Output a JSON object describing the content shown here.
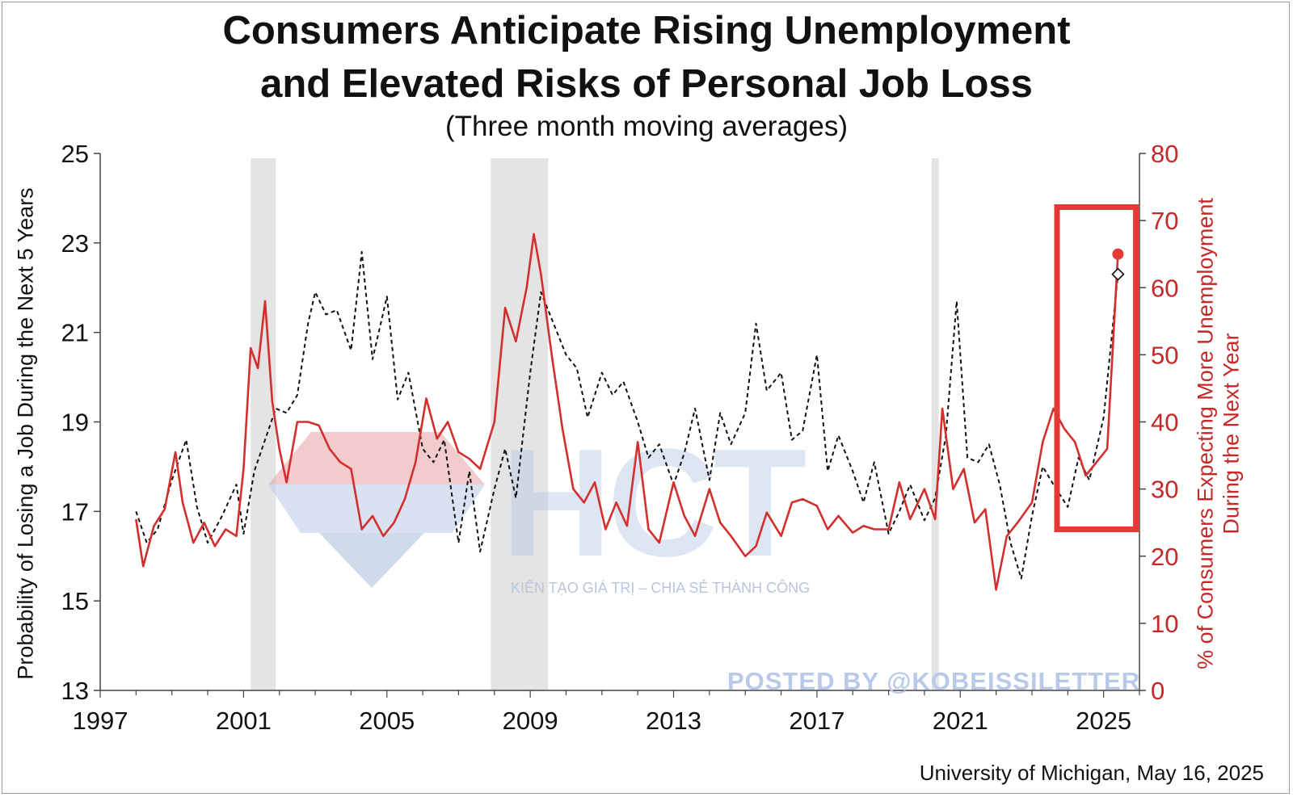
{
  "chart_data": {
    "type": "line",
    "title": "Consumers Anticipate Rising Unemployment",
    "title_line2": "and Elevated Risks of Personal Job Loss",
    "subtitle": "(Three month moving averages)",
    "source": "University of Michigan, May 16, 2025",
    "ylabel_left": "Probability of Losing a Job During the Next 5 Years",
    "ylabel_right_line1": "% of Consumers Expecting More Unemployment",
    "ylabel_right_line2": "During the Next Year",
    "xlim": [
      1997,
      2026
    ],
    "ylim_left": [
      13,
      25
    ],
    "ylim_right": [
      0,
      80
    ],
    "x_ticks": [
      1997,
      2001,
      2005,
      2009,
      2013,
      2017,
      2021,
      2025
    ],
    "y_ticks_left": [
      13,
      15,
      17,
      19,
      21,
      23,
      25
    ],
    "y_ticks_right": [
      0,
      10,
      20,
      30,
      40,
      50,
      60,
      70,
      80
    ],
    "recessions": [
      [
        2001.2,
        2001.9
      ],
      [
        2007.9,
        2009.5
      ],
      [
        2020.2,
        2020.4
      ]
    ],
    "highlight_box": {
      "x": [
        2023.7,
        2025.9
      ],
      "y_right": [
        24,
        72
      ]
    },
    "series": [
      {
        "name": "Probability of Losing a Job During the Next 5 Years",
        "axis": "left",
        "style": "dashed",
        "color": "#111111",
        "x": [
          1998.0,
          1998.3,
          1998.6,
          1999.0,
          1999.4,
          1999.7,
          2000.0,
          2000.4,
          2000.8,
          2001.0,
          2001.3,
          2001.6,
          2001.9,
          2002.2,
          2002.5,
          2002.8,
          2003.0,
          2003.3,
          2003.6,
          2004.0,
          2004.3,
          2004.6,
          2005.0,
          2005.3,
          2005.6,
          2006.0,
          2006.3,
          2006.6,
          2007.0,
          2007.3,
          2007.6,
          2008.0,
          2008.3,
          2008.6,
          2009.0,
          2009.3,
          2009.6,
          2010.0,
          2010.3,
          2010.6,
          2011.0,
          2011.3,
          2011.6,
          2012.0,
          2012.3,
          2012.6,
          2013.0,
          2013.3,
          2013.6,
          2014.0,
          2014.3,
          2014.6,
          2015.0,
          2015.3,
          2015.6,
          2016.0,
          2016.3,
          2016.6,
          2017.0,
          2017.3,
          2017.6,
          2018.0,
          2018.3,
          2018.6,
          2019.0,
          2019.3,
          2019.6,
          2020.0,
          2020.3,
          2020.6,
          2020.9,
          2021.2,
          2021.5,
          2021.8,
          2022.1,
          2022.4,
          2022.7,
          2023.0,
          2023.3,
          2023.6,
          2024.0,
          2024.3,
          2024.6,
          2025.0,
          2025.4
        ],
        "values": [
          17.0,
          16.3,
          16.6,
          17.7,
          18.6,
          17.1,
          16.3,
          16.9,
          17.6,
          16.5,
          17.9,
          18.6,
          19.3,
          19.2,
          19.6,
          21.2,
          21.9,
          21.4,
          21.5,
          20.6,
          22.8,
          20.4,
          21.8,
          19.5,
          20.1,
          18.4,
          18.1,
          18.6,
          16.3,
          17.9,
          16.1,
          17.5,
          18.4,
          17.3,
          20.1,
          21.9,
          21.3,
          20.5,
          20.2,
          19.1,
          20.1,
          19.6,
          19.9,
          19.0,
          18.2,
          18.5,
          17.6,
          18.3,
          19.3,
          17.7,
          19.2,
          18.5,
          19.2,
          21.2,
          19.7,
          20.1,
          18.6,
          18.8,
          20.5,
          17.9,
          18.7,
          17.9,
          17.2,
          18.1,
          16.5,
          17.0,
          17.6,
          16.8,
          17.3,
          18.7,
          21.7,
          18.2,
          18.1,
          18.5,
          17.6,
          16.3,
          15.5,
          16.9,
          18.0,
          17.6,
          17.1,
          18.2,
          17.7,
          19.1,
          22.3
        ]
      },
      {
        "name": "% of Consumers Expecting More Unemployment During the Next Year",
        "axis": "right",
        "style": "solid",
        "color": "#d32f2f",
        "x": [
          1998.0,
          1998.2,
          1998.5,
          1998.8,
          1999.1,
          1999.3,
          1999.6,
          1999.9,
          2000.2,
          2000.5,
          2000.8,
          2001.0,
          2001.2,
          2001.4,
          2001.6,
          2001.8,
          2002.0,
          2002.2,
          2002.5,
          2002.8,
          2003.1,
          2003.4,
          2003.7,
          2004.0,
          2004.3,
          2004.6,
          2004.9,
          2005.2,
          2005.5,
          2005.8,
          2006.1,
          2006.4,
          2006.7,
          2007.0,
          2007.3,
          2007.6,
          2008.0,
          2008.3,
          2008.6,
          2008.9,
          2009.1,
          2009.3,
          2009.6,
          2009.9,
          2010.2,
          2010.5,
          2010.8,
          2011.1,
          2011.4,
          2011.7,
          2012.0,
          2012.3,
          2012.6,
          2013.0,
          2013.3,
          2013.6,
          2014.0,
          2014.3,
          2014.6,
          2015.0,
          2015.3,
          2015.6,
          2016.0,
          2016.3,
          2016.6,
          2017.0,
          2017.3,
          2017.6,
          2018.0,
          2018.3,
          2018.6,
          2019.0,
          2019.3,
          2019.6,
          2020.0,
          2020.3,
          2020.5,
          2020.8,
          2021.1,
          2021.4,
          2021.7,
          2022.0,
          2022.3,
          2022.6,
          2023.0,
          2023.3,
          2023.6,
          2023.9,
          2024.2,
          2024.5,
          2024.8,
          2025.1,
          2025.4
        ],
        "values": [
          25.5,
          18.5,
          24.5,
          27.0,
          35.5,
          28.0,
          22.0,
          25.0,
          21.5,
          24.0,
          23.0,
          33.0,
          51.0,
          48.0,
          58.0,
          43.0,
          36.0,
          31.0,
          40.0,
          40.0,
          39.5,
          36.0,
          34.0,
          33.0,
          24.0,
          26.0,
          23.0,
          25.0,
          28.5,
          34.0,
          43.5,
          37.5,
          40.0,
          35.5,
          34.5,
          33.0,
          40.0,
          57.0,
          52.0,
          60.0,
          68.0,
          62.0,
          50.0,
          39.0,
          30.0,
          28.0,
          31.0,
          24.0,
          28.0,
          24.5,
          37.0,
          24.0,
          22.0,
          31.0,
          26.0,
          23.0,
          30.0,
          25.0,
          23.0,
          20.0,
          21.5,
          26.5,
          23.0,
          28.0,
          28.5,
          27.5,
          24.0,
          26.0,
          23.5,
          24.5,
          24.0,
          24.0,
          31.0,
          25.5,
          30.0,
          25.5,
          42.0,
          30.0,
          33.0,
          25.0,
          27.0,
          15.0,
          23.0,
          25.0,
          28.0,
          37.0,
          42.0,
          39.0,
          37.0,
          32.0,
          34.0,
          36.0,
          65.0
        ]
      }
    ],
    "end_markers": {
      "left_value": 22.3,
      "right_value": 65.0,
      "x": 2025.4
    }
  },
  "watermark": {
    "logo_text": "HCT",
    "slogan": "KIẾN TẠO GIÁ TRỊ – CHIA SẺ THÀNH CÔNG",
    "posted_by": "POSTED BY @KOBEISSILETTER"
  }
}
